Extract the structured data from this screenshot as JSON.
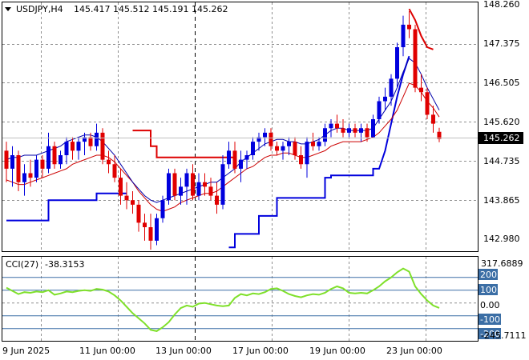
{
  "symbol_header": {
    "symbol": "USDJPY,H4",
    "open": "145.417",
    "high": "145.512",
    "low": "145.191",
    "close": "145.262"
  },
  "price_axis": {
    "labels": [
      "148.260",
      "147.375",
      "146.505",
      "145.620",
      "144.735",
      "143.865",
      "142.980"
    ],
    "current_price": "145.262"
  },
  "time_axis": {
    "labels": [
      "9 Jun 2025",
      "11 Jun 00:00",
      "13 Jun 00:00",
      "17 Jun 00:00",
      "19 Jun 00:00",
      "23 Jun 00:00"
    ]
  },
  "cci_panel": {
    "label": "CCI(27)",
    "value": "-38.3153",
    "max_label": "317.6889",
    "min_label": "-245.7111",
    "levels": [
      "200",
      "100",
      "0.00",
      "-100",
      "-200"
    ]
  },
  "colors": {
    "bull_candle": "#0000dd",
    "bear_candle": "#e00000",
    "fast_ma": "#0000aa",
    "slow_ma": "#cc0000",
    "trail_stop_up": "#0000dd",
    "trail_stop_down": "#dd0000",
    "cci_line": "#7fe02a",
    "cci_level": "#3b6ea5",
    "grid": "#909090"
  },
  "chart_data": [
    {
      "type": "candlestick",
      "title": "USDJPY,H4",
      "ylim": [
        142.7,
        148.45
      ],
      "candles": [
        [
          145.0,
          145.2,
          144.3,
          144.6
        ],
        [
          144.6,
          145.1,
          144.2,
          144.9
        ],
        [
          144.9,
          145.0,
          144.1,
          144.3
        ],
        [
          144.3,
          144.7,
          144.0,
          144.5
        ],
        [
          144.5,
          144.8,
          144.2,
          144.4
        ],
        [
          144.4,
          144.9,
          144.3,
          144.8
        ],
        [
          144.8,
          144.9,
          144.4,
          144.6
        ],
        [
          144.6,
          145.4,
          144.5,
          145.1
        ],
        [
          145.1,
          145.2,
          144.6,
          144.7
        ],
        [
          144.7,
          145.0,
          144.6,
          144.9
        ],
        [
          144.9,
          145.3,
          144.7,
          145.2
        ],
        [
          145.2,
          145.3,
          144.8,
          145.0
        ],
        [
          145.0,
          145.3,
          144.8,
          145.2
        ],
        [
          145.2,
          145.4,
          144.9,
          145.3
        ],
        [
          145.3,
          145.4,
          145.0,
          145.1
        ],
        [
          145.1,
          145.6,
          145.0,
          145.4
        ],
        [
          145.4,
          145.5,
          144.7,
          144.8
        ],
        [
          144.8,
          145.0,
          144.5,
          144.7
        ],
        [
          144.7,
          144.9,
          144.3,
          144.4
        ],
        [
          144.4,
          144.6,
          143.8,
          144.0
        ],
        [
          144.0,
          144.3,
          143.7,
          143.9
        ],
        [
          143.9,
          144.1,
          143.6,
          143.8
        ],
        [
          143.8,
          143.9,
          143.2,
          143.4
        ],
        [
          143.4,
          143.6,
          143.0,
          143.3
        ],
        [
          143.3,
          143.6,
          142.8,
          143.0
        ],
        [
          143.0,
          143.6,
          142.9,
          143.5
        ],
        [
          143.5,
          144.0,
          143.4,
          143.9
        ],
        [
          143.9,
          144.6,
          143.8,
          144.5
        ],
        [
          144.5,
          144.6,
          143.9,
          144.0
        ],
        [
          144.0,
          144.4,
          143.8,
          144.2
        ],
        [
          144.2,
          144.6,
          143.8,
          144.5
        ],
        [
          144.5,
          144.7,
          143.9,
          144.0
        ],
        [
          144.0,
          144.5,
          143.9,
          144.3
        ],
        [
          144.3,
          144.5,
          144.0,
          144.2
        ],
        [
          144.2,
          144.4,
          143.9,
          144.0
        ],
        [
          144.0,
          144.3,
          143.6,
          143.8
        ],
        [
          143.8,
          144.9,
          143.7,
          144.7
        ],
        [
          144.7,
          145.2,
          144.6,
          145.0
        ],
        [
          145.0,
          145.2,
          144.5,
          144.6
        ],
        [
          144.6,
          145.0,
          144.3,
          144.8
        ],
        [
          144.8,
          145.0,
          144.6,
          144.9
        ],
        [
          144.9,
          145.3,
          144.8,
          145.2
        ],
        [
          145.2,
          145.4,
          145.0,
          145.3
        ],
        [
          145.3,
          145.5,
          145.1,
          145.4
        ],
        [
          145.4,
          145.5,
          145.0,
          145.1
        ],
        [
          145.1,
          145.2,
          144.9,
          145.0
        ],
        [
          145.0,
          145.2,
          144.8,
          145.1
        ],
        [
          145.1,
          145.3,
          144.9,
          145.2
        ],
        [
          145.2,
          145.3,
          144.8,
          144.9
        ],
        [
          144.9,
          145.1,
          144.6,
          144.7
        ],
        [
          144.7,
          145.3,
          144.4,
          145.2
        ],
        [
          145.2,
          145.4,
          145.0,
          145.1
        ],
        [
          145.1,
          145.3,
          145.0,
          145.2
        ],
        [
          145.2,
          145.6,
          145.1,
          145.5
        ],
        [
          145.5,
          145.7,
          145.3,
          145.6
        ],
        [
          145.6,
          145.8,
          145.4,
          145.5
        ],
        [
          145.5,
          145.7,
          145.3,
          145.4
        ],
        [
          145.4,
          145.6,
          145.3,
          145.5
        ],
        [
          145.5,
          145.6,
          145.3,
          145.4
        ],
        [
          145.4,
          145.6,
          145.2,
          145.5
        ],
        [
          145.5,
          145.6,
          145.2,
          145.3
        ],
        [
          145.3,
          145.8,
          145.3,
          145.7
        ],
        [
          145.7,
          146.2,
          145.6,
          146.1
        ],
        [
          146.1,
          146.4,
          145.9,
          146.2
        ],
        [
          146.2,
          146.7,
          146.0,
          146.6
        ],
        [
          146.6,
          147.4,
          146.4,
          147.3
        ],
        [
          147.3,
          148.0,
          147.1,
          147.8
        ],
        [
          147.8,
          148.1,
          147.5,
          147.7
        ],
        [
          147.7,
          147.8,
          146.3,
          146.4
        ],
        [
          146.4,
          146.7,
          146.1,
          146.3
        ],
        [
          146.3,
          146.4,
          145.7,
          145.8
        ],
        [
          145.8,
          146.0,
          145.4,
          145.6
        ],
        [
          145.42,
          145.51,
          145.19,
          145.26
        ]
      ],
      "fast_ma": [
        144.8,
        144.85,
        144.85,
        144.9,
        144.9,
        144.9,
        144.95,
        145.0,
        145.05,
        145.1,
        145.2,
        145.25,
        145.3,
        145.35,
        145.35,
        145.3,
        145.2,
        145.05,
        144.9,
        144.7,
        144.5,
        144.3,
        144.15,
        144.0,
        143.9,
        143.85,
        143.9,
        143.95,
        144.0,
        144.05,
        144.1,
        144.15,
        144.2,
        144.25,
        144.3,
        144.3,
        144.4,
        144.5,
        144.6,
        144.75,
        144.85,
        144.95,
        145.05,
        145.15,
        145.2,
        145.25,
        145.25,
        145.2,
        145.2,
        145.15,
        145.15,
        145.2,
        145.25,
        145.35,
        145.45,
        145.5,
        145.5,
        145.45,
        145.45,
        145.45,
        145.45,
        145.5,
        145.7,
        145.9,
        146.1,
        146.4,
        146.75,
        147.05,
        146.95,
        146.7,
        146.4,
        146.15,
        145.9
      ],
      "slow_ma": [
        144.35,
        144.3,
        144.25,
        144.25,
        144.3,
        144.35,
        144.4,
        144.45,
        144.5,
        144.55,
        144.6,
        144.7,
        144.75,
        144.8,
        144.85,
        144.9,
        144.9,
        144.85,
        144.75,
        144.6,
        144.45,
        144.3,
        144.1,
        143.95,
        143.8,
        143.7,
        143.65,
        143.7,
        143.75,
        143.85,
        143.9,
        143.95,
        144.0,
        144.05,
        144.05,
        144.1,
        144.2,
        144.3,
        144.4,
        144.5,
        144.6,
        144.65,
        144.75,
        144.85,
        144.9,
        144.9,
        144.95,
        144.95,
        144.9,
        144.85,
        144.85,
        144.9,
        144.95,
        145.0,
        145.1,
        145.15,
        145.2,
        145.2,
        145.2,
        145.2,
        145.25,
        145.3,
        145.4,
        145.55,
        145.7,
        145.9,
        146.2,
        146.5,
        146.45,
        146.3,
        146.1,
        145.95,
        145.75
      ]
    },
    {
      "type": "line",
      "title": "CCI(27)",
      "ylim": [
        -245.7111,
        317.6889
      ],
      "series": [
        {
          "values": [
            120,
            95,
            70,
            85,
            80,
            90,
            85,
            100,
            65,
            75,
            90,
            85,
            95,
            100,
            95,
            110,
            105,
            90,
            60,
            20,
            -30,
            -80,
            -120,
            -160,
            -210,
            -220,
            -190,
            -150,
            -90,
            -40,
            -20,
            -30,
            -5,
            0,
            -10,
            -20,
            -25,
            -20,
            40,
            70,
            60,
            75,
            70,
            85,
            110,
            115,
            95,
            70,
            55,
            45,
            60,
            70,
            65,
            80,
            110,
            130,
            115,
            80,
            75,
            80,
            75,
            100,
            130,
            170,
            200,
            240,
            270,
            245,
            130,
            70,
            20,
            -20,
            -38.3153
          ]
        }
      ]
    }
  ]
}
